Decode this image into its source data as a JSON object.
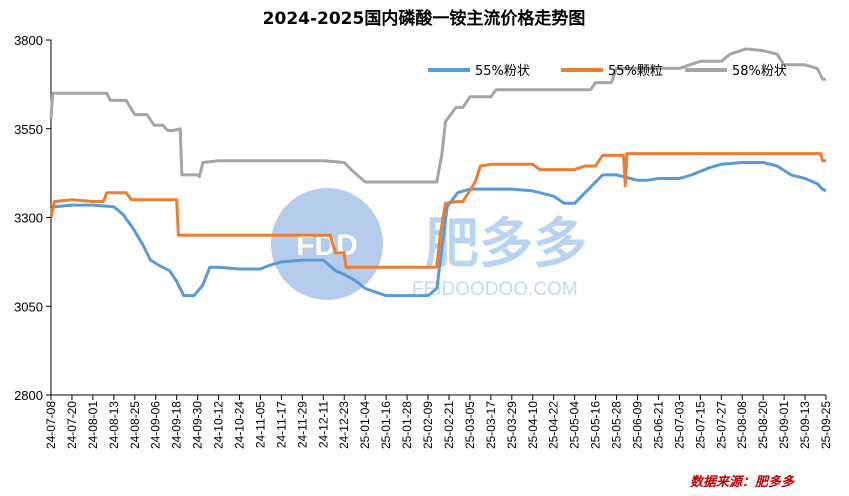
{
  "chart_data": {
    "type": "line",
    "title": "2024-2025国内磷酸一铵主流价格走势图",
    "ylim": [
      2800,
      3800
    ],
    "yticks": [
      2800,
      3050,
      3300,
      3550,
      3800
    ],
    "grid": false,
    "legend_position": "top-right",
    "source": "数据来源：肥多多",
    "watermark": {
      "logo": "FDD",
      "name": "肥多多",
      "url": "FEIDOODOO.COM"
    },
    "x_start": "2024-07-08",
    "x_end": "2025-09-25",
    "x_ticks": [
      "24-07-08",
      "24-07-20",
      "24-08-01",
      "24-08-13",
      "24-08-25",
      "24-09-06",
      "24-09-18",
      "24-09-30",
      "24-10-12",
      "24-10-24",
      "24-11-05",
      "24-11-17",
      "24-11-29",
      "24-12-11",
      "24-12-23",
      "25-01-04",
      "25-01-16",
      "25-01-28",
      "25-02-09",
      "25-02-21",
      "25-03-05",
      "25-03-17",
      "25-03-29",
      "25-04-10",
      "25-04-22",
      "25-05-04",
      "25-05-16",
      "25-05-28",
      "25-06-09",
      "25-06-21",
      "25-07-03",
      "25-07-15",
      "25-07-27",
      "25-08-08",
      "25-08-20",
      "25-09-01",
      "25-09-13",
      "25-09-25"
    ],
    "series": [
      {
        "name": "55%粉状",
        "color": "#5b9bd5",
        "points": [
          [
            "2024-07-08",
            3320
          ],
          [
            "2024-07-10",
            3330
          ],
          [
            "2024-07-20",
            3335
          ],
          [
            "2024-08-01",
            3335
          ],
          [
            "2024-08-13",
            3330
          ],
          [
            "2024-08-18",
            3310
          ],
          [
            "2024-08-24",
            3270
          ],
          [
            "2024-08-30",
            3220
          ],
          [
            "2024-09-03",
            3180
          ],
          [
            "2024-09-08",
            3165
          ],
          [
            "2024-09-14",
            3150
          ],
          [
            "2024-09-18",
            3120
          ],
          [
            "2024-09-22",
            3080
          ],
          [
            "2024-09-28",
            3080
          ],
          [
            "2024-10-03",
            3110
          ],
          [
            "2024-10-07",
            3160
          ],
          [
            "2024-10-12",
            3160
          ],
          [
            "2024-10-24",
            3155
          ],
          [
            "2024-11-05",
            3155
          ],
          [
            "2024-11-10",
            3165
          ],
          [
            "2024-11-17",
            3175
          ],
          [
            "2024-11-29",
            3180
          ],
          [
            "2024-12-11",
            3180
          ],
          [
            "2024-12-18",
            3150
          ],
          [
            "2024-12-23",
            3140
          ],
          [
            "2024-12-30",
            3120
          ],
          [
            "2025-01-04",
            3100
          ],
          [
            "2025-01-10",
            3090
          ],
          [
            "2025-01-16",
            3080
          ],
          [
            "2025-01-28",
            3080
          ],
          [
            "2025-02-09",
            3080
          ],
          [
            "2025-02-14",
            3100
          ],
          [
            "2025-02-20",
            3330
          ],
          [
            "2025-02-26",
            3370
          ],
          [
            "2025-03-05",
            3380
          ],
          [
            "2025-03-17",
            3380
          ],
          [
            "2025-03-29",
            3380
          ],
          [
            "2025-04-10",
            3375
          ],
          [
            "2025-04-22",
            3360
          ],
          [
            "2025-04-28",
            3340
          ],
          [
            "2025-05-04",
            3340
          ],
          [
            "2025-05-08",
            3360
          ],
          [
            "2025-05-14",
            3390
          ],
          [
            "2025-05-20",
            3420
          ],
          [
            "2025-05-28",
            3420
          ],
          [
            "2025-06-05",
            3410
          ],
          [
            "2025-06-09",
            3405
          ],
          [
            "2025-06-15",
            3405
          ],
          [
            "2025-06-21",
            3410
          ],
          [
            "2025-07-03",
            3410
          ],
          [
            "2025-07-10",
            3420
          ],
          [
            "2025-07-20",
            3440
          ],
          [
            "2025-07-27",
            3450
          ],
          [
            "2025-08-08",
            3455
          ],
          [
            "2025-08-20",
            3455
          ],
          [
            "2025-08-28",
            3445
          ],
          [
            "2025-09-05",
            3420
          ],
          [
            "2025-09-13",
            3410
          ],
          [
            "2025-09-20",
            3395
          ],
          [
            "2025-09-23",
            3380
          ],
          [
            "2025-09-25",
            3375
          ]
        ]
      },
      {
        "name": "55%颗粒",
        "color": "#ed7d31",
        "points": [
          [
            "2024-07-08",
            3300
          ],
          [
            "2024-07-10",
            3345
          ],
          [
            "2024-07-20",
            3350
          ],
          [
            "2024-08-01",
            3345
          ],
          [
            "2024-08-07",
            3345
          ],
          [
            "2024-08-09",
            3370
          ],
          [
            "2024-08-20",
            3370
          ],
          [
            "2024-08-23",
            3350
          ],
          [
            "2024-09-10",
            3350
          ],
          [
            "2024-09-18",
            3350
          ],
          [
            "2024-09-19",
            3250
          ],
          [
            "2024-09-30",
            3250
          ],
          [
            "2024-10-12",
            3250
          ],
          [
            "2024-10-24",
            3250
          ],
          [
            "2024-11-05",
            3250
          ],
          [
            "2024-11-17",
            3250
          ],
          [
            "2024-11-29",
            3250
          ],
          [
            "2024-12-11",
            3250
          ],
          [
            "2024-12-15",
            3250
          ],
          [
            "2024-12-18",
            3200
          ],
          [
            "2024-12-23",
            3200
          ],
          [
            "2024-12-24",
            3160
          ],
          [
            "2025-01-04",
            3160
          ],
          [
            "2025-01-16",
            3160
          ],
          [
            "2025-01-28",
            3160
          ],
          [
            "2025-02-09",
            3160
          ],
          [
            "2025-02-14",
            3160
          ],
          [
            "2025-02-16",
            3250
          ],
          [
            "2025-02-19",
            3340
          ],
          [
            "2025-02-26",
            3345
          ],
          [
            "2025-03-01",
            3345
          ],
          [
            "2025-03-08",
            3400
          ],
          [
            "2025-03-11",
            3445
          ],
          [
            "2025-03-17",
            3450
          ],
          [
            "2025-03-29",
            3450
          ],
          [
            "2025-04-10",
            3450
          ],
          [
            "2025-04-14",
            3435
          ],
          [
            "2025-04-22",
            3435
          ],
          [
            "2025-05-04",
            3435
          ],
          [
            "2025-05-10",
            3445
          ],
          [
            "2025-05-16",
            3445
          ],
          [
            "2025-05-20",
            3475
          ],
          [
            "2025-05-28",
            3475
          ],
          [
            "2025-06-01",
            3475
          ],
          [
            "2025-06-02",
            3390
          ],
          [
            "2025-06-03",
            3480
          ],
          [
            "2025-06-09",
            3480
          ],
          [
            "2025-06-21",
            3480
          ],
          [
            "2025-07-03",
            3480
          ],
          [
            "2025-07-15",
            3480
          ],
          [
            "2025-07-27",
            3480
          ],
          [
            "2025-08-08",
            3480
          ],
          [
            "2025-08-20",
            3480
          ],
          [
            "2025-09-01",
            3480
          ],
          [
            "2025-09-13",
            3480
          ],
          [
            "2025-09-22",
            3480
          ],
          [
            "2025-09-23",
            3460
          ],
          [
            "2025-09-25",
            3460
          ]
        ]
      },
      {
        "name": "58%粉状",
        "color": "#a5a5a5",
        "points": [
          [
            "2024-07-08",
            3580
          ],
          [
            "2024-07-09",
            3650
          ],
          [
            "2024-07-20",
            3650
          ],
          [
            "2024-08-01",
            3650
          ],
          [
            "2024-08-09",
            3650
          ],
          [
            "2024-08-11",
            3630
          ],
          [
            "2024-08-20",
            3630
          ],
          [
            "2024-08-25",
            3590
          ],
          [
            "2024-09-01",
            3590
          ],
          [
            "2024-09-05",
            3560
          ],
          [
            "2024-09-10",
            3560
          ],
          [
            "2024-09-13",
            3545
          ],
          [
            "2024-09-16",
            3545
          ],
          [
            "2024-09-20",
            3550
          ],
          [
            "2024-09-21",
            3420
          ],
          [
            "2024-09-30",
            3420
          ],
          [
            "2024-10-01",
            3415
          ],
          [
            "2024-10-03",
            3455
          ],
          [
            "2024-10-12",
            3460
          ],
          [
            "2024-10-24",
            3460
          ],
          [
            "2024-11-05",
            3460
          ],
          [
            "2024-11-17",
            3460
          ],
          [
            "2024-11-29",
            3460
          ],
          [
            "2024-12-11",
            3460
          ],
          [
            "2024-12-23",
            3455
          ],
          [
            "2024-12-28",
            3430
          ],
          [
            "2025-01-04",
            3400
          ],
          [
            "2025-01-16",
            3400
          ],
          [
            "2025-01-28",
            3400
          ],
          [
            "2025-02-09",
            3400
          ],
          [
            "2025-02-14",
            3400
          ],
          [
            "2025-02-17",
            3480
          ],
          [
            "2025-02-19",
            3570
          ],
          [
            "2025-02-25",
            3610
          ],
          [
            "2025-03-01",
            3610
          ],
          [
            "2025-03-05",
            3640
          ],
          [
            "2025-03-17",
            3640
          ],
          [
            "2025-03-20",
            3660
          ],
          [
            "2025-03-29",
            3660
          ],
          [
            "2025-04-10",
            3660
          ],
          [
            "2025-04-22",
            3660
          ],
          [
            "2025-05-04",
            3660
          ],
          [
            "2025-05-13",
            3660
          ],
          [
            "2025-05-16",
            3680
          ],
          [
            "2025-05-25",
            3680
          ],
          [
            "2025-05-28",
            3720
          ],
          [
            "2025-06-09",
            3720
          ],
          [
            "2025-06-21",
            3720
          ],
          [
            "2025-07-03",
            3720
          ],
          [
            "2025-07-09",
            3730
          ],
          [
            "2025-07-15",
            3740
          ],
          [
            "2025-07-27",
            3740
          ],
          [
            "2025-08-01",
            3760
          ],
          [
            "2025-08-10",
            3775
          ],
          [
            "2025-08-20",
            3770
          ],
          [
            "2025-08-28",
            3760
          ],
          [
            "2025-09-01",
            3730
          ],
          [
            "2025-09-13",
            3730
          ],
          [
            "2025-09-20",
            3720
          ],
          [
            "2025-09-23",
            3690
          ],
          [
            "2025-09-25",
            3690
          ]
        ]
      }
    ]
  }
}
